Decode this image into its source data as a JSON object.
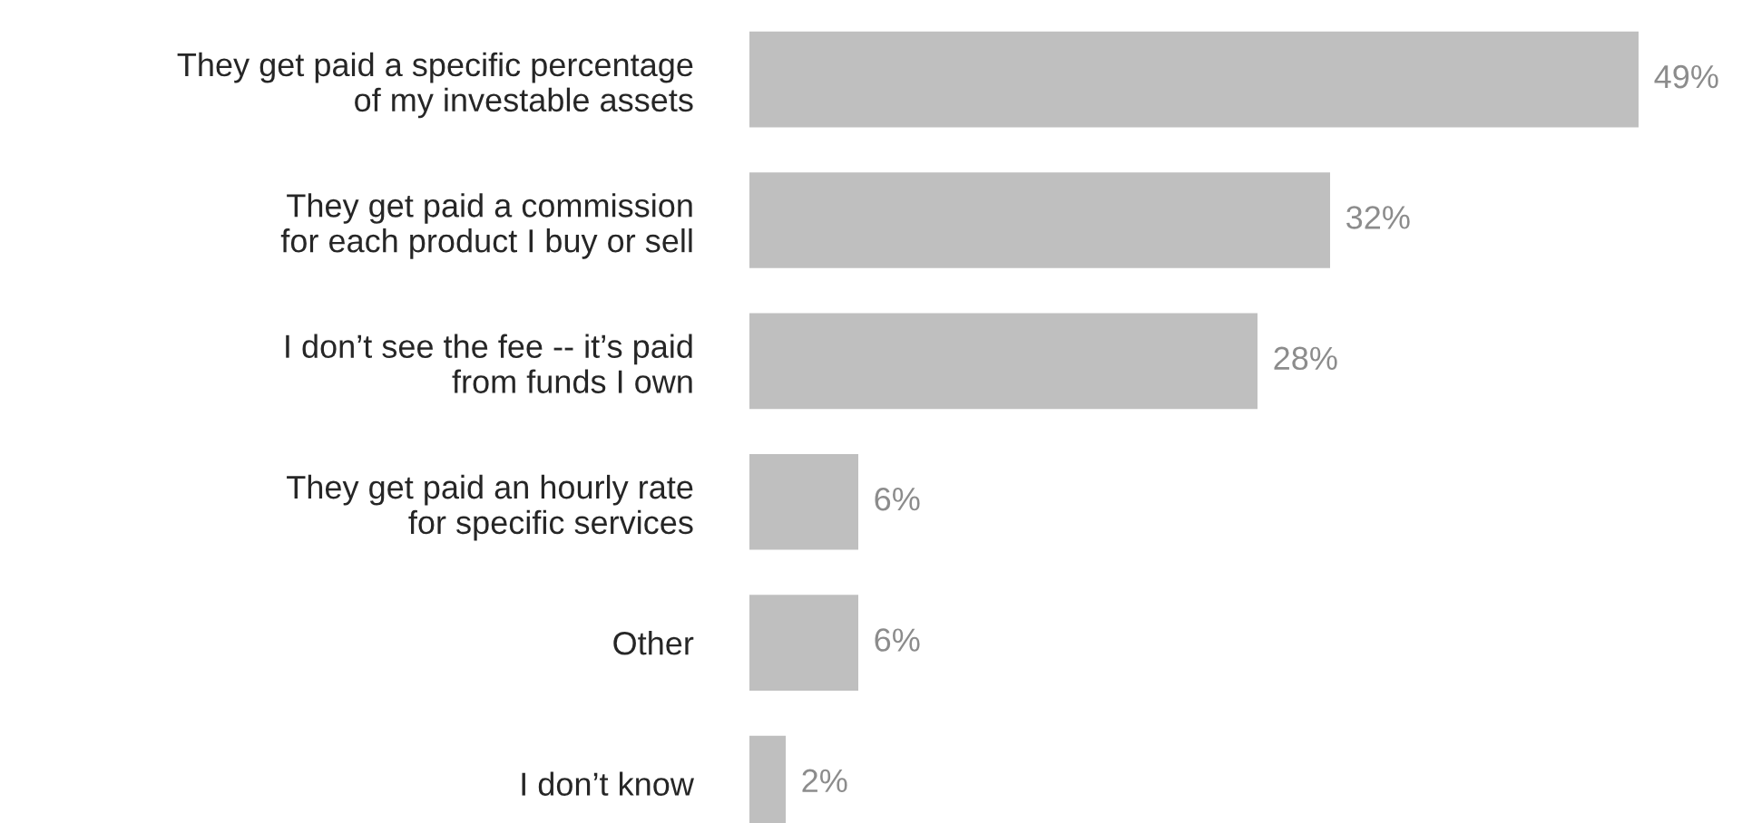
{
  "chart_data": {
    "type": "bar",
    "orientation": "horizontal",
    "categories": [
      "They get paid a specific percentage\nof my investable assets",
      "They get paid a commission\nfor each product I buy or sell",
      "I don’t see the fee -- it’s paid\nfrom funds I own",
      "They get paid an hourly rate\nfor specific services",
      "Other",
      "I don’t know"
    ],
    "values": [
      49,
      32,
      28,
      6,
      6,
      2
    ],
    "value_labels": [
      "49%",
      "32%",
      "28%",
      "6%",
      "6%",
      "2%"
    ],
    "color": "#bfbfbf",
    "tick_labels": "y",
    "grid": false,
    "legend": false
  }
}
